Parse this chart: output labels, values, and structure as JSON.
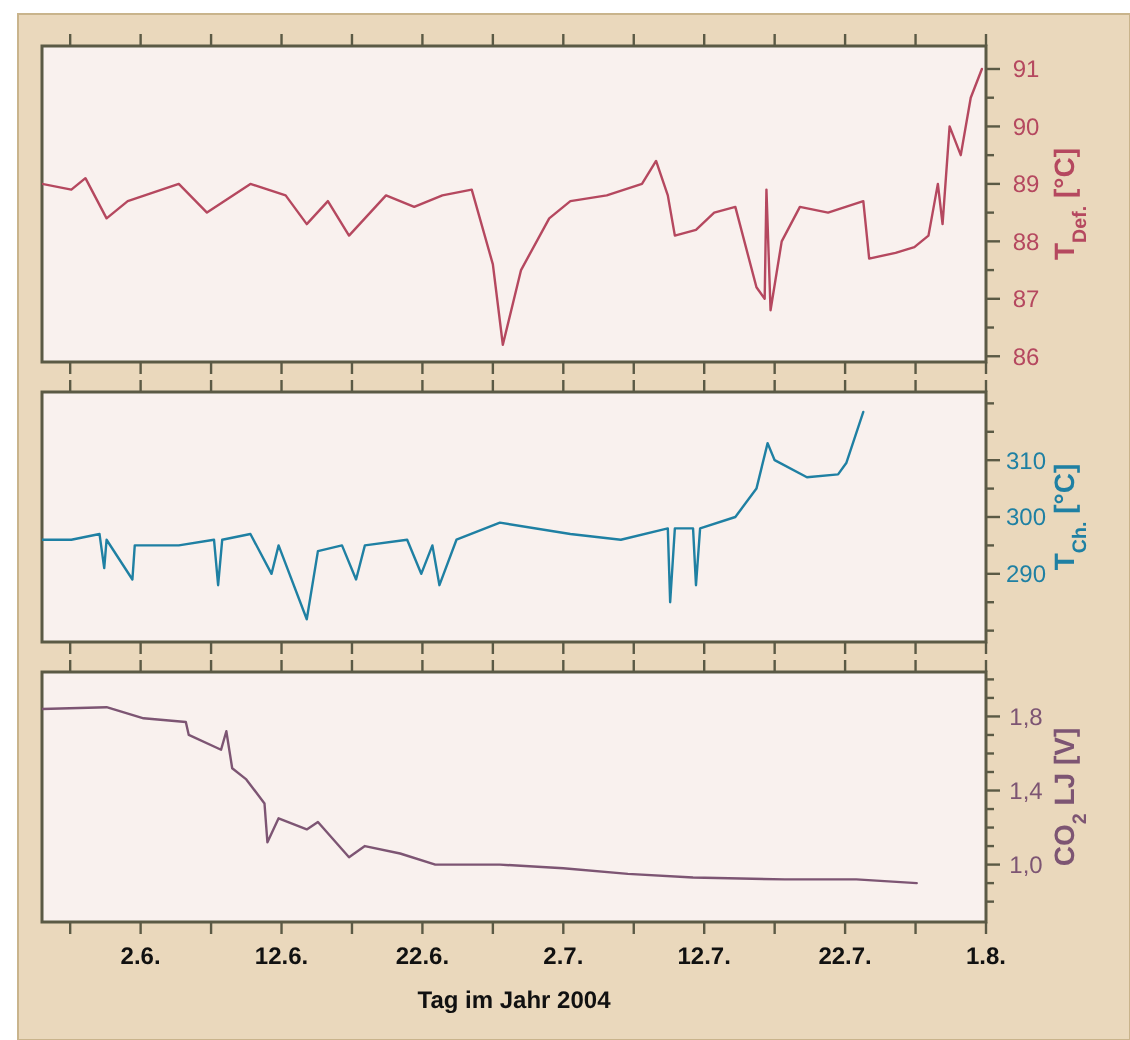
{
  "chart_data": [
    {
      "type": "line",
      "ylabel": "T$_{Def.}$ [°C]",
      "tick_labels": "y",
      "xlim": [
        "--05-26",
        "--08-01"
      ],
      "xticks": [
        {
          "value": "--05-28",
          "label": null
        },
        {
          "value": "--06-02",
          "label": null
        },
        {
          "value": "--06-07",
          "label": null
        },
        {
          "value": "--06-12",
          "label": null
        },
        {
          "value": "--06-17",
          "label": null
        },
        {
          "value": "--06-22",
          "label": null
        },
        {
          "value": "--06-27",
          "label": null
        },
        {
          "value": "--07-02",
          "label": null
        },
        {
          "value": "--07-07",
          "label": null
        },
        {
          "value": "--07-12",
          "label": null
        },
        {
          "value": "--07-17",
          "label": null
        },
        {
          "value": "--07-22",
          "label": null
        },
        {
          "value": "--07-27",
          "label": null
        },
        {
          "value": "--08-01",
          "label": null
        }
      ],
      "ylim": [
        85.9,
        91.4
      ],
      "yticks": [
        86,
        {
          "value": 86.5,
          "label": null
        },
        87,
        {
          "value": 87.5,
          "label": null
        },
        88,
        {
          "value": 88.5,
          "label": null
        },
        89,
        {
          "value": 89.5,
          "label": null
        },
        90,
        {
          "value": 90.5,
          "label": null
        },
        91
      ],
      "series": [
        {
          "color": "#b5485f",
          "x": [
            "--05-26T00:00",
            "--05-28T02:00",
            "--05-29T02:00",
            "--05-30T14:00",
            "--06-01T02:00",
            "--06-04T17:00",
            "--06-06T17:00",
            "--06-09T19:00",
            "--06-12T07:00",
            "--06-13T19:00",
            "--06-15T07:00",
            "--06-16T19:00",
            "--06-19T10:00",
            "--06-21T10:00",
            "--06-23T10:00",
            "--06-25T12:00",
            "--06-27T00:00",
            "--06-27T17:00",
            "--06-29T00:00",
            "--07-01T00:00",
            "--07-02T12:00",
            "--07-05T02:00",
            "--07-07T14:00",
            "--07-08T14:00",
            "--07-09T10:00",
            "--07-09T22:00",
            "--07-11T10:00",
            "--07-12T17:00",
            "--07-14T05:00",
            "--07-15T17:00",
            "--07-16T07:00",
            "--07-16T10:00",
            "--07-16T17:00",
            "--07-17T12:00",
            "--07-18T19:00",
            "--07-20T19:00",
            "--07-23T07:00",
            "--07-23T17:00",
            "--07-25T14:00",
            "--07-26T22:00",
            "--07-27T22:00",
            "--07-28T14:00",
            "--07-28T22:00",
            "--07-29T10:00",
            "--07-30T05:00",
            "--07-30T22:00",
            "--07-31T17:00"
          ],
          "values": [
            89.0,
            88.9,
            89.1,
            88.4,
            88.7,
            89.0,
            88.5,
            89.0,
            88.8,
            88.3,
            88.7,
            88.1,
            88.8,
            88.6,
            88.8,
            88.9,
            87.6,
            86.2,
            87.5,
            88.4,
            88.7,
            88.8,
            89.0,
            89.4,
            88.8,
            88.1,
            88.2,
            88.5,
            88.6,
            87.2,
            87.0,
            88.9,
            86.8,
            88.0,
            88.6,
            88.5,
            88.7,
            87.7,
            87.8,
            87.9,
            88.1,
            89.0,
            88.3,
            90.0,
            89.5,
            90.5,
            91.0
          ]
        }
      ]
    },
    {
      "type": "line",
      "ylabel": "T$_{Ch.}$ [°C]",
      "tick_labels": "y",
      "xlim": [
        "--05-26",
        "--08-01"
      ],
      "xticks": [
        {
          "value": "--05-28",
          "label": null
        },
        {
          "value": "--06-02",
          "label": null
        },
        {
          "value": "--06-07",
          "label": null
        },
        {
          "value": "--06-12",
          "label": null
        },
        {
          "value": "--06-17",
          "label": null
        },
        {
          "value": "--06-22",
          "label": null
        },
        {
          "value": "--06-27",
          "label": null
        },
        {
          "value": "--07-02",
          "label": null
        },
        {
          "value": "--07-07",
          "label": null
        },
        {
          "value": "--07-12",
          "label": null
        },
        {
          "value": "--07-17",
          "label": null
        },
        {
          "value": "--07-22",
          "label": null
        },
        {
          "value": "--07-27",
          "label": null
        },
        {
          "value": "--08-01",
          "label": null
        }
      ],
      "ylim": [
        278,
        322
      ],
      "yticks": [
        {
          "value": 280,
          "label": null
        },
        {
          "value": 285,
          "label": null
        },
        290,
        {
          "value": 295,
          "label": null
        },
        300,
        {
          "value": 305,
          "label": null
        },
        310,
        {
          "value": 315,
          "label": null
        },
        {
          "value": 320,
          "label": null
        }
      ],
      "series": [
        {
          "color": "#1f80a3",
          "x": [
            "--05-26T00:00",
            "--05-28T02:00",
            "--05-30T02:00",
            "--05-30T10:00",
            "--05-30T14:00",
            "--06-01T10:00",
            "--06-01T14:00",
            "--06-04T17:00",
            "--06-07T05:00",
            "--06-07T12:00",
            "--06-07T19:00",
            "--06-09T19:00",
            "--06-11T07:00",
            "--06-11T19:00",
            "--06-13T19:00",
            "--06-14T14:00",
            "--06-16T07:00",
            "--06-17T07:00",
            "--06-17T22:00",
            "--06-20T22:00",
            "--06-21T22:00",
            "--06-22T17:00",
            "--06-23T05:00",
            "--06-24T10:00",
            "--06-27T12:00",
            "--07-02T12:00",
            "--07-06T02:00",
            "--07-09T10:00",
            "--07-09T14:00",
            "--07-09T22:00",
            "--07-11T05:00",
            "--07-11T10:00",
            "--07-11T17:00",
            "--07-14T05:00",
            "--07-15T17:00",
            "--07-16T12:00",
            "--07-17T00:00",
            "--07-19T07:00",
            "--07-21T12:00",
            "--07-22T02:00",
            "--07-23T07:00"
          ],
          "values": [
            296,
            296,
            297,
            291,
            296,
            289,
            295,
            295,
            296,
            288,
            296,
            297,
            290,
            295,
            282,
            294,
            295,
            289,
            295,
            296,
            290,
            295,
            288,
            296,
            299,
            297,
            296,
            298,
            285,
            298,
            298,
            288,
            298,
            300,
            305,
            313,
            310,
            307,
            307.5,
            309.5,
            318.5
          ]
        }
      ]
    },
    {
      "type": "line",
      "ylabel": "CO$_{2}$ LJ [V]",
      "xlabel": "Tag im Jahr 2004",
      "xlim": [
        "--05-26",
        "--08-01"
      ],
      "xticks": [
        {
          "value": "--05-28",
          "label": null
        },
        {
          "value": "--06-02",
          "label": "2.6."
        },
        {
          "value": "--06-07",
          "label": null
        },
        {
          "value": "--06-12",
          "label": "12.6."
        },
        {
          "value": "--06-17",
          "label": null
        },
        {
          "value": "--06-22",
          "label": "22.6."
        },
        {
          "value": "--06-27",
          "label": null
        },
        {
          "value": "--07-02",
          "label": "2.7."
        },
        {
          "value": "--07-07",
          "label": null
        },
        {
          "value": "--07-12",
          "label": "12.7."
        },
        {
          "value": "--07-17",
          "label": null
        },
        {
          "value": "--07-22",
          "label": "22.7."
        },
        {
          "value": "--07-27",
          "label": null
        },
        {
          "value": "--08-01",
          "label": "1.8."
        }
      ],
      "ylim": [
        0.69,
        2.04
      ],
      "yticks": [
        {
          "value": 0.8,
          "label": null
        },
        {
          "value": 0.9,
          "label": null
        },
        {
          "value": 1.0,
          "label": "1,0"
        },
        {
          "value": 1.1,
          "label": null
        },
        {
          "value": 1.2,
          "label": null
        },
        {
          "value": 1.3,
          "label": null
        },
        {
          "value": 1.4,
          "label": "1,4"
        },
        {
          "value": 1.5,
          "label": null
        },
        {
          "value": 1.6,
          "label": null
        },
        {
          "value": 1.7,
          "label": null
        },
        {
          "value": 1.8,
          "label": "1,8"
        },
        {
          "value": 1.9,
          "label": null
        },
        {
          "value": 2.0,
          "label": null
        }
      ],
      "series": [
        {
          "color": "#7d5573",
          "x": [
            "--05-26T00:00",
            "--05-30T14:00",
            "--06-02T05:00",
            "--06-05T05:00",
            "--06-05T10:00",
            "--06-07T17:00",
            "--06-08T02:00",
            "--06-08T12:00",
            "--06-09T12:00",
            "--06-10T19:00",
            "--06-11T00:00",
            "--06-11T19:00",
            "--06-13T19:00",
            "--06-14T14:00",
            "--06-16T19:00",
            "--06-17T22:00",
            "--06-20T10:00",
            "--06-22T22:00",
            "--06-27T12:00",
            "--07-02T00:00",
            "--07-06T14:00",
            "--07-11T05:00",
            "--07-17T17:00",
            "--07-22T19:00",
            "--07-27T02:00"
          ],
          "values": [
            1.84,
            1.85,
            1.79,
            1.77,
            1.7,
            1.62,
            1.72,
            1.52,
            1.46,
            1.33,
            1.12,
            1.25,
            1.19,
            1.23,
            1.04,
            1.1,
            1.06,
            1.0,
            1.0,
            0.98,
            0.95,
            0.93,
            0.92,
            0.92,
            0.9
          ]
        }
      ]
    }
  ]
}
